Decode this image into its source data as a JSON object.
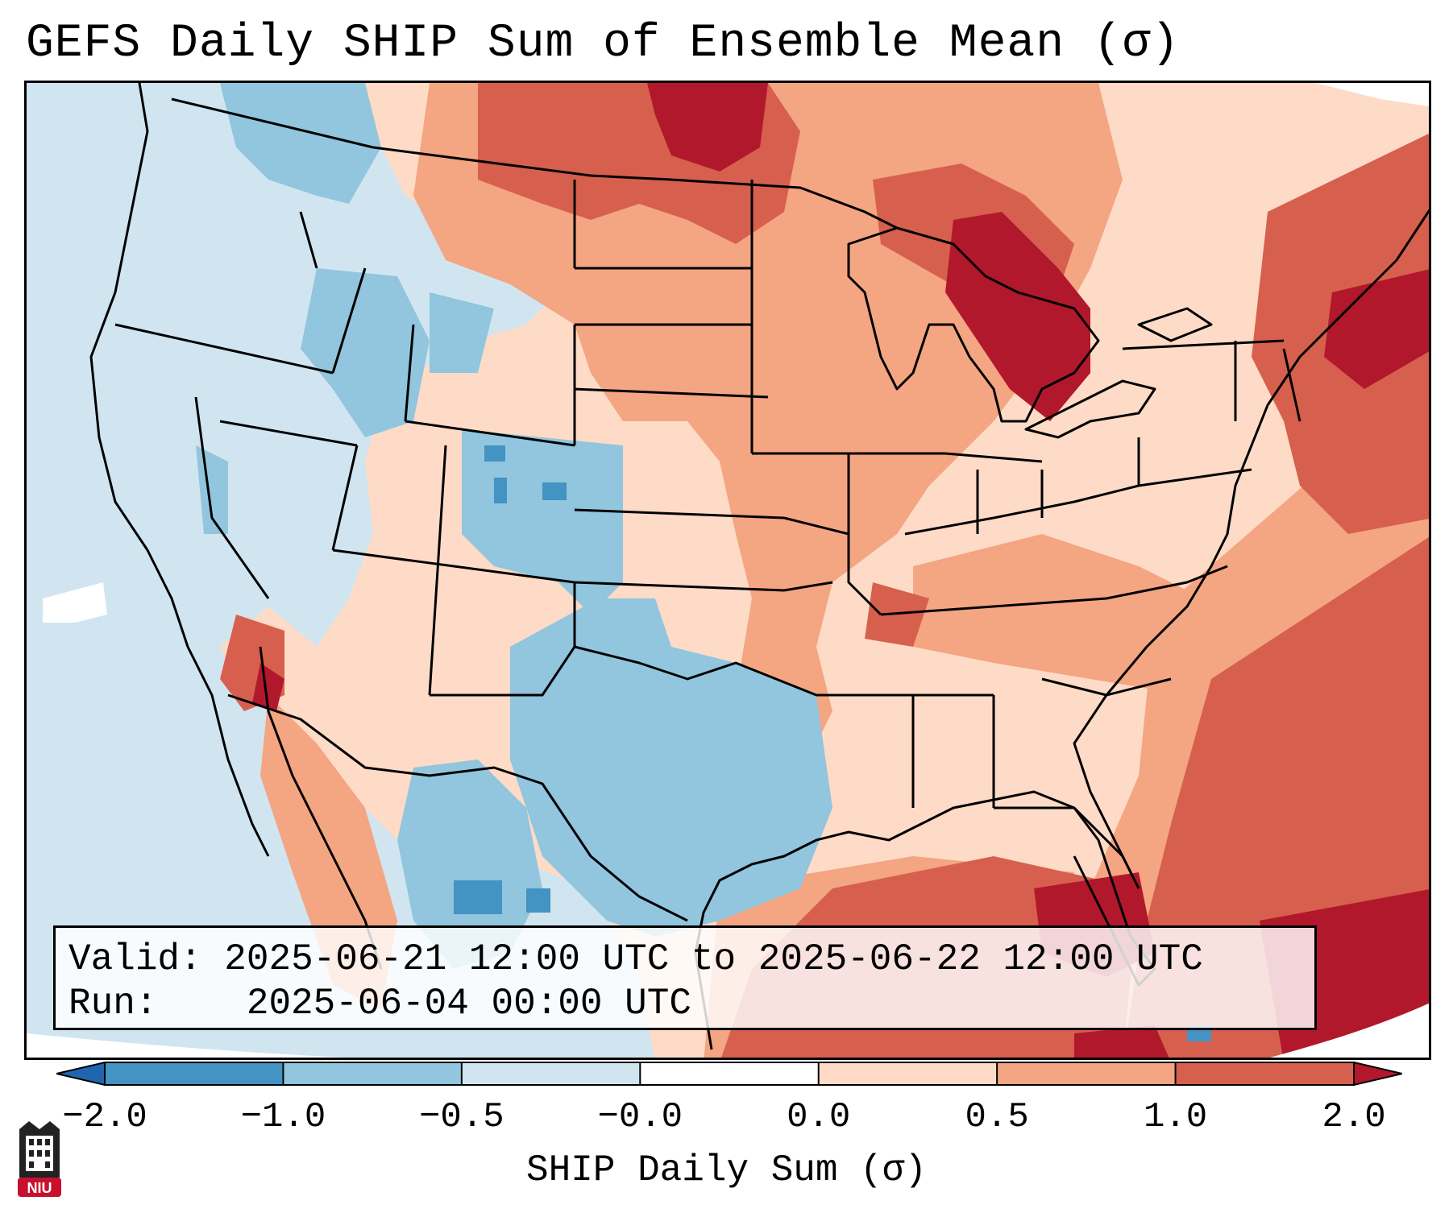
{
  "title": "GEFS Daily SHIP Sum of Ensemble Mean (σ)",
  "info": {
    "valid_label": "Valid:",
    "valid_value": "2025-06-21 12:00 UTC to 2025-06-22 12:00 UTC",
    "run_label": "Run:",
    "run_value": "2025-06-04 00:00 UTC"
  },
  "colorbar": {
    "label": "SHIP Daily Sum (σ)",
    "ticks": [
      "−2.0",
      "−1.0",
      "−0.5",
      "−0.0",
      "0.0",
      "0.5",
      "1.0",
      "2.0"
    ],
    "colors": [
      "#2166ac",
      "#4393c3",
      "#92c5de",
      "#d1e5f0",
      "#ffffff",
      "#fddbc7",
      "#f4a582",
      "#d6604d",
      "#b2182b"
    ]
  },
  "map": {
    "background_color": "#d1e5f0",
    "extent": "CONUS"
  },
  "logo": {
    "text": "NIU",
    "color": "#c8102e"
  }
}
